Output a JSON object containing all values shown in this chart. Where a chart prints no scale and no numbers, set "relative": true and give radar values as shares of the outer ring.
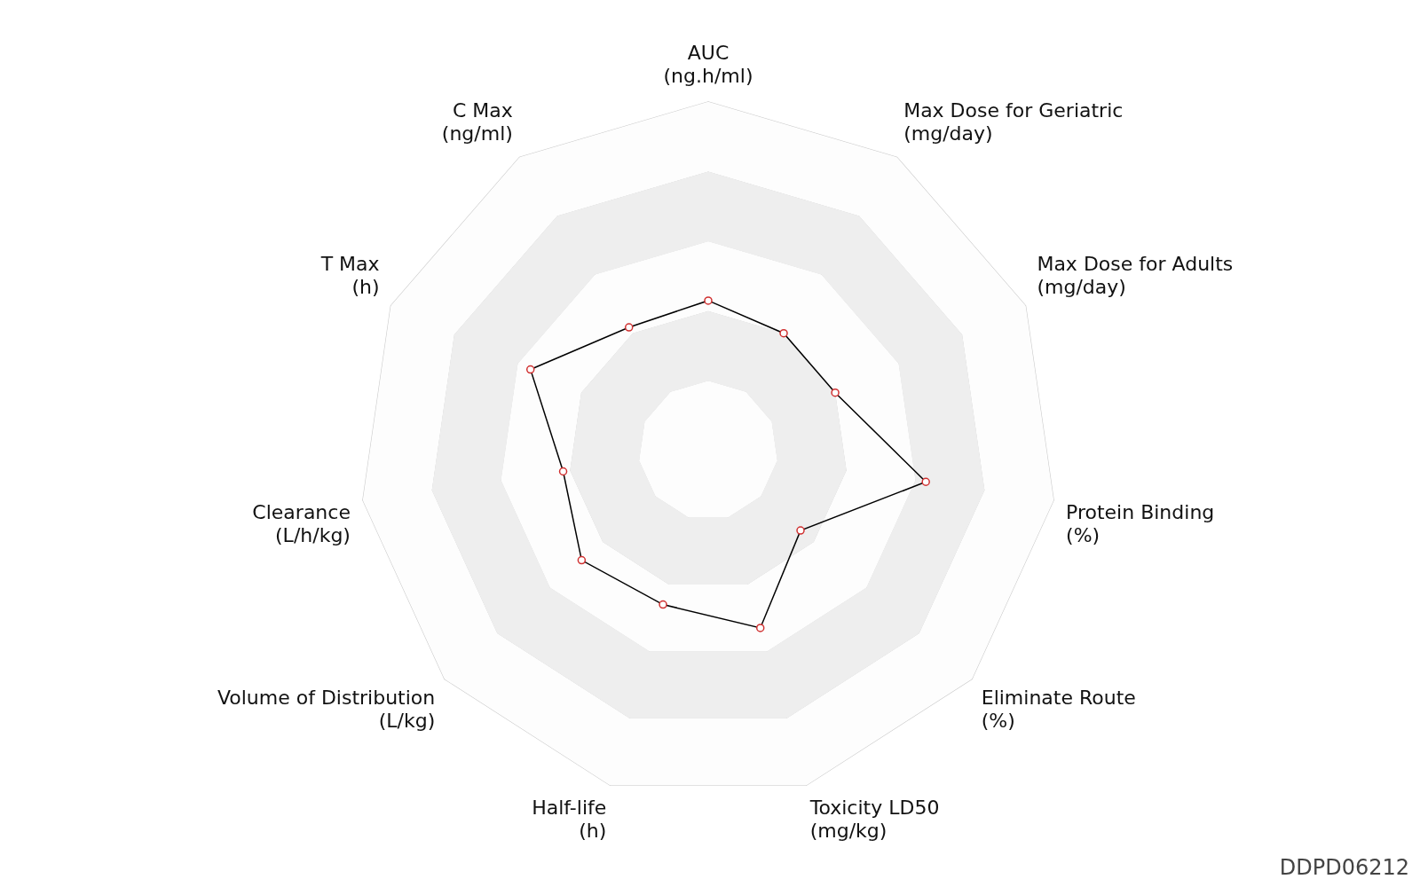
{
  "chart_data": {
    "type": "radar",
    "relative": true,
    "categories": [
      "AUC\n(ng.h/ml)",
      "Max Dose for Geriatric\n(mg/day)",
      "Max Dose for Adults\n(mg/day)",
      "Protein Binding\n(%)",
      "Eliminate Route\n(%)",
      "Toxicity LD50\n(mg/kg)",
      "Half-life\n(h)",
      "Volume of Distribution\n(L/kg)",
      "Clearance\n(L/h/kg)",
      "T Max\n(h)",
      "C Max\n(ng/ml)"
    ],
    "series": [
      {
        "color": "#000000",
        "values": [
          0.43,
          0.4,
          0.4,
          0.63,
          0.35,
          0.53,
          0.46,
          0.48,
          0.42,
          0.56,
          0.42
        ]
      }
    ],
    "marker": "circle",
    "legend": false,
    "annotations": [
      "DDPD06212"
    ]
  }
}
